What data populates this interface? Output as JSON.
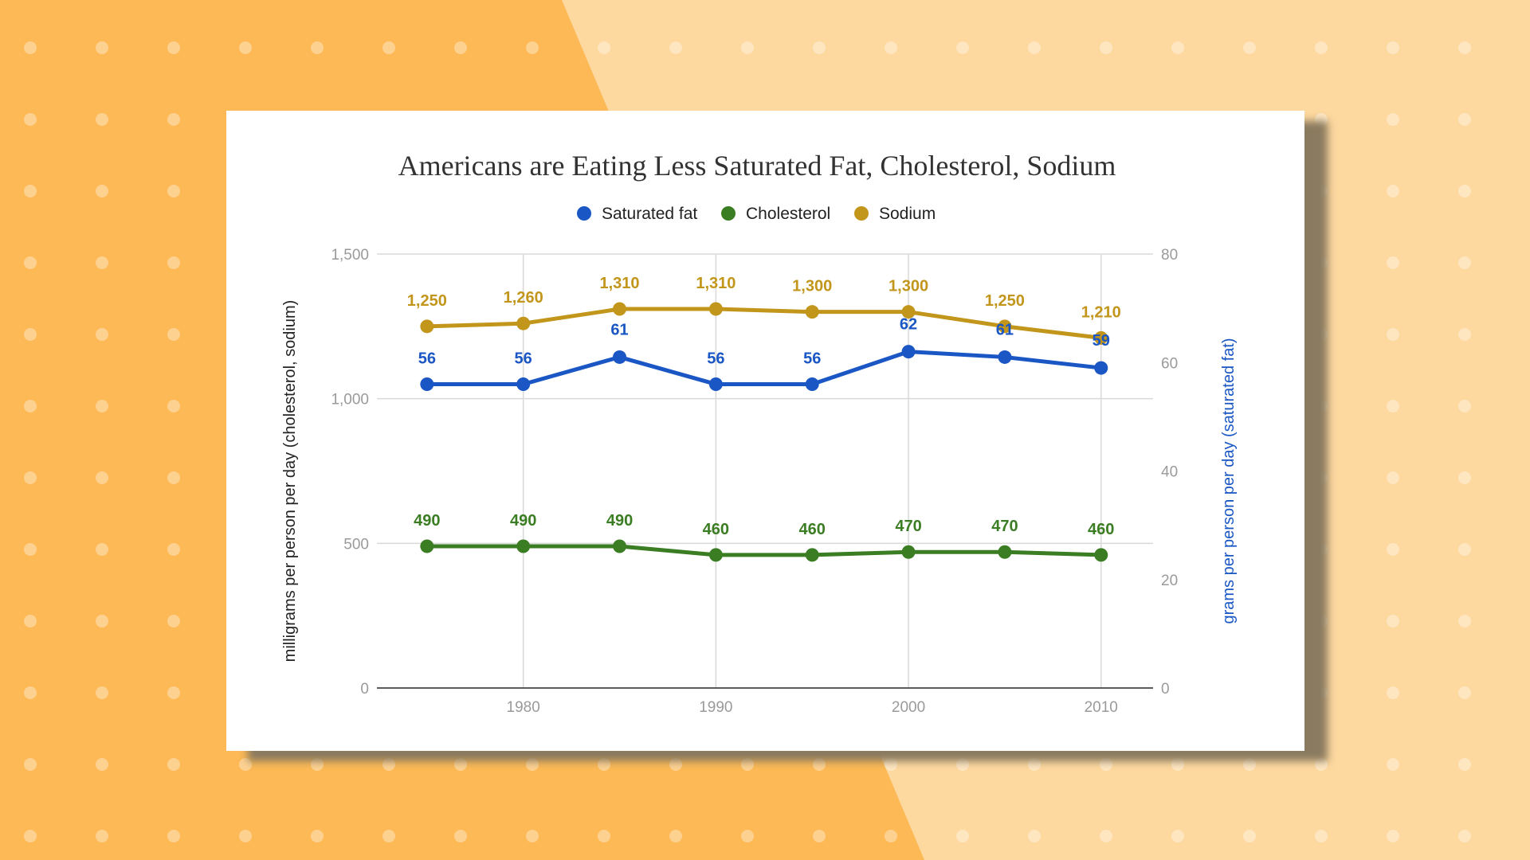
{
  "colors": {
    "background_left": "#FCB955",
    "background_right": "#FDD89F",
    "saturated_fat": "#1A56C4",
    "cholesterol": "#3A7D22",
    "sodium": "#C2951B"
  },
  "chart_data": {
    "type": "line",
    "title": "Americans are Eating Less Saturated Fat, Cholesterol, Sodium",
    "x": [
      1975,
      1980,
      1985,
      1990,
      1995,
      2000,
      2005,
      2010
    ],
    "x_ticks": [
      "1980",
      "1990",
      "2000",
      "2010"
    ],
    "ylabel_left": "milligrams per person per day (cholesterol, sodium)",
    "ylabel_right": "grams per person per day (saturated fat)",
    "ylim_left": [
      0,
      1500
    ],
    "ylim_right": [
      0,
      80
    ],
    "y_ticks_left": [
      "0",
      "500",
      "1,000",
      "1,500"
    ],
    "y_ticks_right": [
      "0",
      "20",
      "40",
      "60",
      "80"
    ],
    "legend_position": "top",
    "grid": true,
    "series": [
      {
        "name": "Saturated fat",
        "axis": "right",
        "color": "#1A56C4",
        "values": [
          56,
          56,
          61,
          56,
          56,
          62,
          61,
          59
        ],
        "labels": [
          "56",
          "56",
          "61",
          "56",
          "56",
          "62",
          "61",
          "59"
        ]
      },
      {
        "name": "Cholesterol",
        "axis": "left",
        "color": "#3A7D22",
        "values": [
          490,
          490,
          490,
          460,
          460,
          470,
          470,
          460
        ],
        "labels": [
          "490",
          "490",
          "490",
          "460",
          "460",
          "470",
          "470",
          "460"
        ]
      },
      {
        "name": "Sodium",
        "axis": "left",
        "color": "#C2951B",
        "values": [
          1250,
          1260,
          1310,
          1310,
          1300,
          1300,
          1250,
          1210
        ],
        "labels": [
          "1,250",
          "1,260",
          "1,310",
          "1,310",
          "1,300",
          "1,300",
          "1,250",
          "1,210"
        ]
      }
    ]
  }
}
